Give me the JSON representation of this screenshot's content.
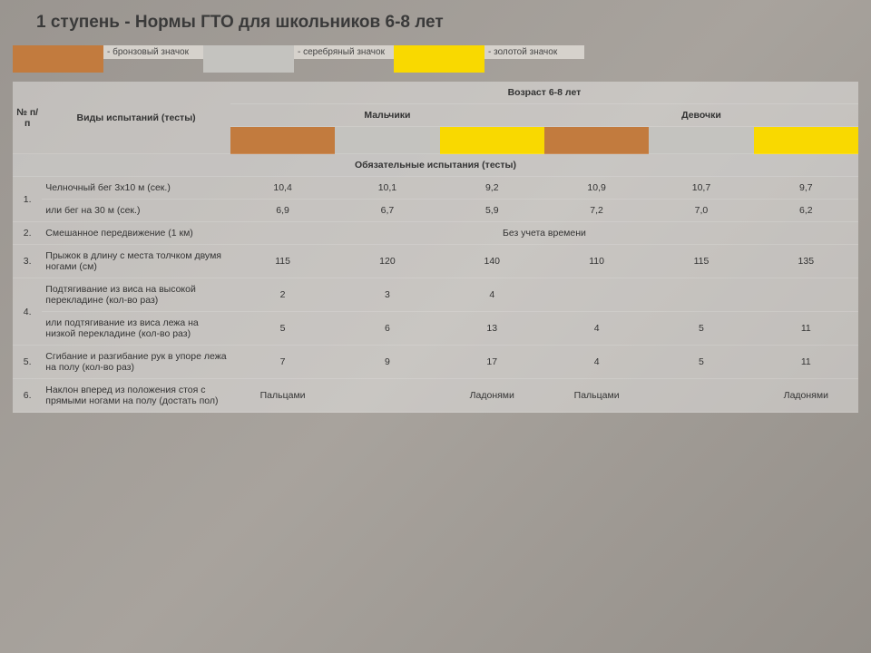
{
  "title": "1 ступень - Нормы ГТО для школьников 6-8 лет",
  "colors": {
    "bronze": "#c27b3e",
    "silver": "#c4c3bf",
    "gold": "#f9d900",
    "header_bg": "#d6d2cc"
  },
  "legend": {
    "bronze_label": "- бронзовый значок",
    "silver_label": "- серебряный значок",
    "gold_label": "- золотой значок"
  },
  "headers": {
    "num": "№ п/п",
    "tests": "Виды испытаний (тесты)",
    "age_group": "Возраст 6-8 лет",
    "boys": "Мальчики",
    "girls": "Девочки"
  },
  "section_mandatory": "Обязательные испытания (тесты)",
  "tests": {
    "t1a": {
      "num": "1.",
      "name": "Челночный бег 3х10 м (сек.)",
      "v": [
        "10,4",
        "10,1",
        "9,2",
        "10,9",
        "10,7",
        "9,7"
      ]
    },
    "t1b": {
      "num": "",
      "name": "или бег на 30 м (сек.)",
      "v": [
        "6,9",
        "6,7",
        "5,9",
        "7,2",
        "7,0",
        "6,2"
      ]
    },
    "t2": {
      "num": "2.",
      "name": "Смешанное передвижение (1 км)",
      "merged": "Без учета времени"
    },
    "t3": {
      "num": "3.",
      "name": "Прыжок в длину с места толчком двумя ногами (см)",
      "v": [
        "115",
        "120",
        "140",
        "110",
        "115",
        "135"
      ]
    },
    "t4a": {
      "num": "4.",
      "name": "Подтягивание из виса на высокой перекладине (кол-во раз)",
      "v": [
        "2",
        "3",
        "4",
        "",
        "",
        ""
      ]
    },
    "t4b": {
      "num": "",
      "name": "или подтягивание из виса лежа на низкой перекладине (кол-во раз)",
      "v": [
        "5",
        "6",
        "13",
        "4",
        "5",
        "11"
      ]
    },
    "t5": {
      "num": "5.",
      "name": "Сгибание и разгибание рук в упоре лежа на полу (кол-во раз)",
      "v": [
        "7",
        "9",
        "17",
        "4",
        "5",
        "11"
      ]
    },
    "t6": {
      "num": "6.",
      "name": "Наклон вперед из положения стоя с прямыми ногами на полу (достать пол)",
      "v": [
        "Пальцами",
        "",
        "Ладонями",
        "Пальцами",
        "",
        "Ладонями"
      ]
    }
  }
}
